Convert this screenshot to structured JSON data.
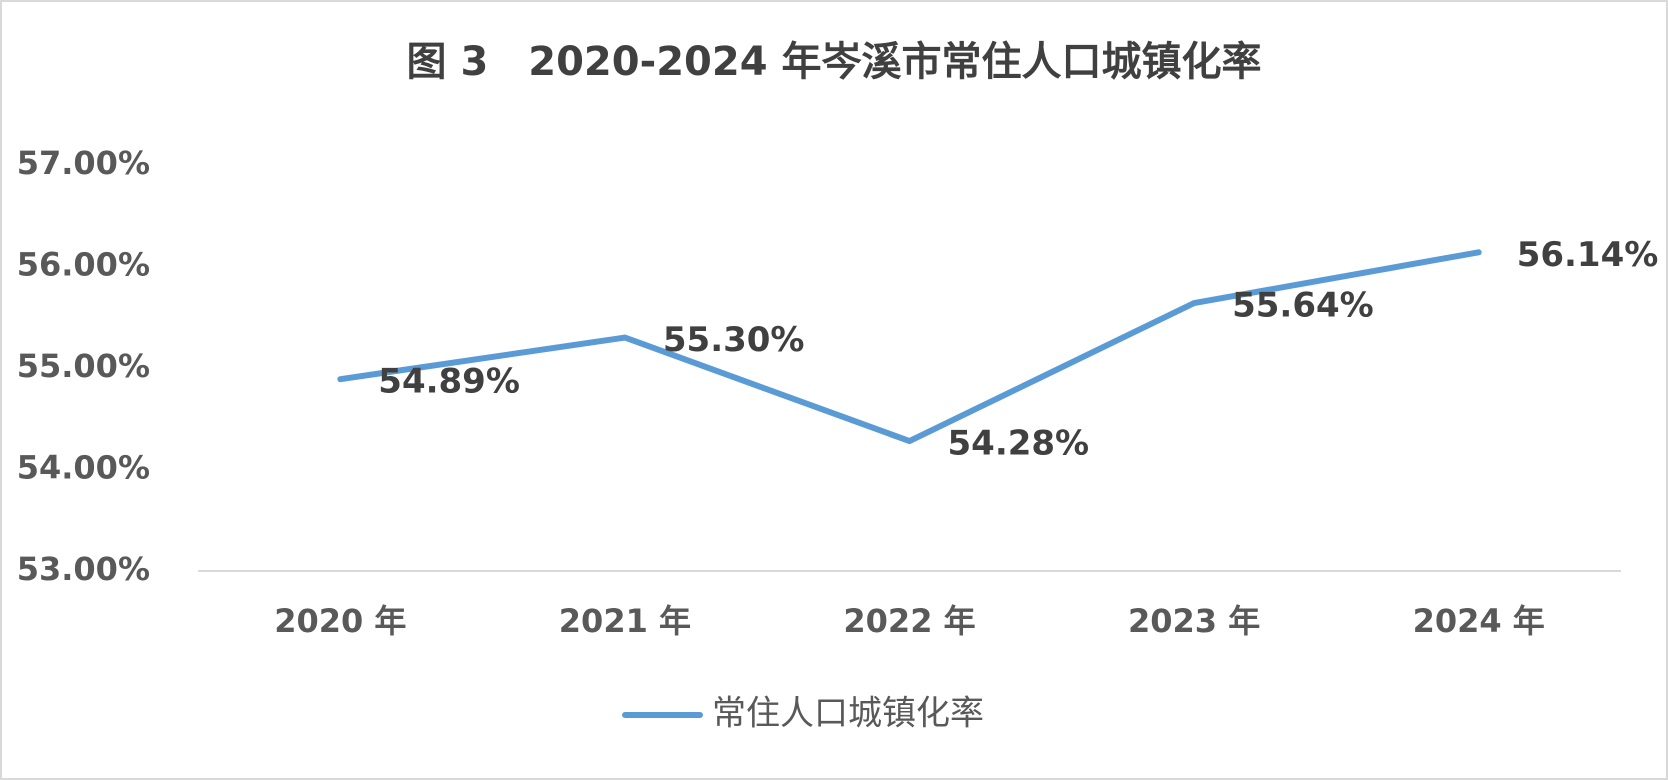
{
  "chart_data": {
    "type": "line",
    "title": "图 3　2020-2024 年岑溪市常住人口城镇化率",
    "categories": [
      "2020 年",
      "2021 年",
      "2022 年",
      "2023 年",
      "2024 年"
    ],
    "series": [
      {
        "name": "常住人口城镇化率",
        "color": "#5b9bd5",
        "values": [
          54.89,
          55.3,
          54.28,
          55.64,
          56.14
        ],
        "value_labels": [
          "54.89%",
          "55.30%",
          "54.28%",
          "55.64%",
          "56.14%"
        ]
      }
    ],
    "ylim": [
      53,
      57
    ],
    "yticks": [
      {
        "value": 53,
        "label": "53.00%"
      },
      {
        "value": 54,
        "label": "54.00%"
      },
      {
        "value": 55,
        "label": "55.00%"
      },
      {
        "value": 56,
        "label": "56.00%"
      },
      {
        "value": 57,
        "label": "57.00%"
      }
    ],
    "grid": false,
    "legend": "bottom"
  }
}
